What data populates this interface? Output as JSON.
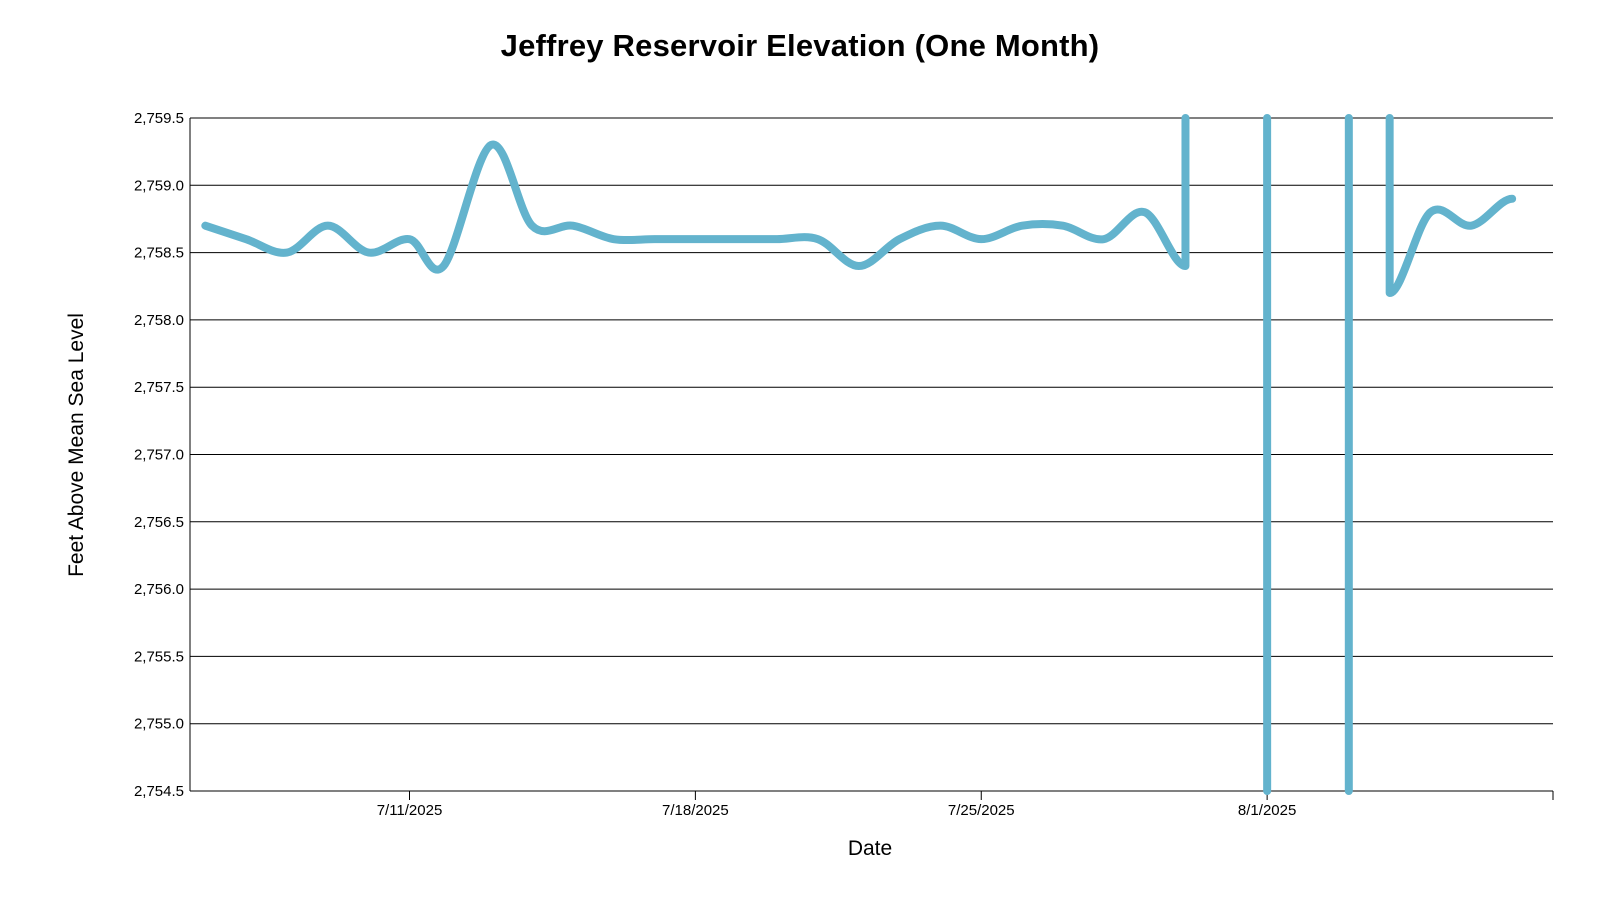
{
  "chart_data": {
    "type": "line",
    "title": "Jeffrey Reservoir Elevation (One Month)",
    "xlabel": "Date",
    "ylabel": "Feet Above Mean Sea Level",
    "ylim": [
      2754.5,
      2759.5
    ],
    "y_ticks": [
      "2,754.5",
      "2,755.0",
      "2,755.5",
      "2,756.0",
      "2,756.5",
      "2,757.0",
      "2,757.5",
      "2,758.0",
      "2,758.5",
      "2,759.0",
      "2,759.5"
    ],
    "y_tick_values": [
      2754.5,
      2755.0,
      2755.5,
      2756.0,
      2756.5,
      2757.0,
      2757.5,
      2758.0,
      2758.5,
      2759.0,
      2759.5
    ],
    "xlim": [
      "2025-07-05T15:00",
      "2025-08-08T00:00"
    ],
    "x_ticks": [
      "7/11/2025",
      "7/18/2025",
      "7/25/2025",
      "8/1/2025"
    ],
    "x_tick_values": [
      "2025-07-11T00:00",
      "2025-07-18T00:00",
      "2025-07-25T00:00",
      "2025-08-01T00:00"
    ],
    "grid": true,
    "line_color": "#63B3CD",
    "series": [
      {
        "segments": [
          [
            {
              "x": "2025-07-06T00:00",
              "y": 2758.7
            },
            {
              "x": "2025-07-07T00:00",
              "y": 2758.6
            },
            {
              "x": "2025-07-08T00:00",
              "y": 2758.5
            },
            {
              "x": "2025-07-09T00:00",
              "y": 2758.7
            },
            {
              "x": "2025-07-10T00:00",
              "y": 2758.5
            },
            {
              "x": "2025-07-11T00:00",
              "y": 2758.6
            },
            {
              "x": "2025-07-11T20:00",
              "y": 2758.4
            },
            {
              "x": "2025-07-13T00:00",
              "y": 2759.3
            },
            {
              "x": "2025-07-14T00:00",
              "y": 2758.7
            },
            {
              "x": "2025-07-15T00:00",
              "y": 2758.7
            },
            {
              "x": "2025-07-16T00:00",
              "y": 2758.6
            },
            {
              "x": "2025-07-17T00:00",
              "y": 2758.6
            },
            {
              "x": "2025-07-18T00:00",
              "y": 2758.6
            },
            {
              "x": "2025-07-19T00:00",
              "y": 2758.6
            },
            {
              "x": "2025-07-20T00:00",
              "y": 2758.6
            },
            {
              "x": "2025-07-21T00:00",
              "y": 2758.6
            },
            {
              "x": "2025-07-22T00:00",
              "y": 2758.4
            },
            {
              "x": "2025-07-23T00:00",
              "y": 2758.6
            },
            {
              "x": "2025-07-24T00:00",
              "y": 2758.7
            },
            {
              "x": "2025-07-25T00:00",
              "y": 2758.6
            },
            {
              "x": "2025-07-26T00:00",
              "y": 2758.7
            },
            {
              "x": "2025-07-27T00:00",
              "y": 2758.7
            },
            {
              "x": "2025-07-28T00:00",
              "y": 2758.6
            },
            {
              "x": "2025-07-29T00:00",
              "y": 2758.8
            },
            {
              "x": "2025-07-30T00:00",
              "y": 2758.4
            },
            {
              "x": "2025-07-30T00:01",
              "y": 2759.5
            }
          ],
          [
            {
              "x": "2025-08-01T00:00",
              "y": 2759.5
            },
            {
              "x": "2025-08-01T00:01",
              "y": 2754.5
            }
          ],
          [
            {
              "x": "2025-08-03T00:00",
              "y": 2754.5
            },
            {
              "x": "2025-08-03T00:01",
              "y": 2759.5
            }
          ],
          [
            {
              "x": "2025-08-04T00:00",
              "y": 2759.5
            },
            {
              "x": "2025-08-04T00:01",
              "y": 2758.2
            },
            {
              "x": "2025-08-05T00:00",
              "y": 2758.8
            },
            {
              "x": "2025-08-06T00:00",
              "y": 2758.7
            },
            {
              "x": "2025-08-07T00:00",
              "y": 2758.9
            }
          ]
        ]
      }
    ]
  }
}
